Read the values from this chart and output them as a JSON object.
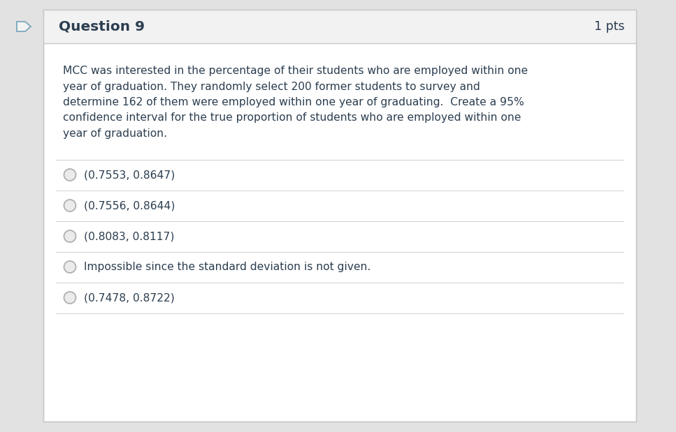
{
  "header_text": "Question 9",
  "pts_text": "1 pts",
  "header_bg": "#f2f2f2",
  "header_text_color": "#2c3e50",
  "body_bg": "#ffffff",
  "border_color": "#c8c8c8",
  "question_text_lines": [
    "MCC was interested in the percentage of their students who are employed within one",
    "year of graduation. They randomly select 200 former students to survey and",
    "determine 162 of them were employed within one year of graduating.  Create a 95%",
    "confidence interval for the true proportion of students who are employed within one",
    "year of graduation."
  ],
  "question_text_color": "#2c3e50",
  "options": [
    "(0.7553, 0.8647)",
    "(0.7556, 0.8644)",
    "(0.8083, 0.8117)",
    "Impossible since the standard deviation is not given.",
    "(0.7478, 0.8722)"
  ],
  "option_text_color": "#2c3e50",
  "separator_color": "#d0d0d0",
  "radio_fill": "#ebebeb",
  "radio_border": "#b0b0b0",
  "outer_bg": "#e2e2e2",
  "flag_border_color": "#7ba7bc",
  "flag_bg": "#f2f2f2"
}
